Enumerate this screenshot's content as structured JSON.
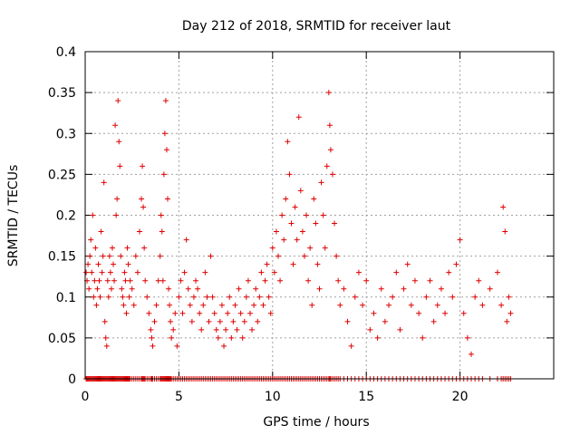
{
  "chart_data": {
    "type": "scatter",
    "title": "Day 212 of 2018, SRMTID for receiver laut",
    "xlabel": "GPS time / hours",
    "ylabel": "SRMTID / TECUs",
    "xlim": [
      0,
      25
    ],
    "ylim": [
      0,
      0.4
    ],
    "xticks": [
      0,
      5,
      10,
      15,
      20
    ],
    "xtick_labels": [
      "0",
      "5",
      "10",
      "15",
      "20"
    ],
    "yticks": [
      0,
      0.05,
      0.1,
      0.15,
      0.2,
      0.25,
      0.3,
      0.35,
      0.4
    ],
    "ytick_labels": [
      "0",
      "0.05",
      "0.1",
      "0.15",
      "0.2",
      "0.25",
      "0.3",
      "0.35",
      "0.4"
    ],
    "grid": true,
    "marker": "+",
    "marker_color": "#e00000",
    "series": [
      {
        "name": "SRMTID",
        "points": [
          [
            0.05,
            0.13
          ],
          [
            0.1,
            0.12
          ],
          [
            0.15,
            0.14
          ],
          [
            0.2,
            0.11
          ],
          [
            0.25,
            0.15
          ],
          [
            0.3,
            0.17
          ],
          [
            0.35,
            0.13
          ],
          [
            0.4,
            0.2
          ],
          [
            0.45,
            0.1
          ],
          [
            0.5,
            0.12
          ],
          [
            0.55,
            0.16
          ],
          [
            0.6,
            0.09
          ],
          [
            0.65,
            0.11
          ],
          [
            0.7,
            0.14
          ],
          [
            0.75,
            0.12
          ],
          [
            0.8,
            0.1
          ],
          [
            0.85,
            0.18
          ],
          [
            0.9,
            0.13
          ],
          [
            0.95,
            0.15
          ],
          [
            1.0,
            0.24
          ],
          [
            1.05,
            0.07
          ],
          [
            1.1,
            0.05
          ],
          [
            1.15,
            0.04
          ],
          [
            1.2,
            0.12
          ],
          [
            1.25,
            0.1
          ],
          [
            1.3,
            0.15
          ],
          [
            1.35,
            0.13
          ],
          [
            1.4,
            0.11
          ],
          [
            1.45,
            0.16
          ],
          [
            1.5,
            0.14
          ],
          [
            1.55,
            0.12
          ],
          [
            1.6,
            0.31
          ],
          [
            1.65,
            0.2
          ],
          [
            1.7,
            0.22
          ],
          [
            1.75,
            0.34
          ],
          [
            1.8,
            0.29
          ],
          [
            1.85,
            0.26
          ],
          [
            1.9,
            0.15
          ],
          [
            1.95,
            0.11
          ],
          [
            2.0,
            0.1
          ],
          [
            2.05,
            0.09
          ],
          [
            2.1,
            0.13
          ],
          [
            2.15,
            0.12
          ],
          [
            2.2,
            0.08
          ],
          [
            2.25,
            0.16
          ],
          [
            2.3,
            0.14
          ],
          [
            2.35,
            0.1
          ],
          [
            2.4,
            0.12
          ],
          [
            2.5,
            0.11
          ],
          [
            2.6,
            0.09
          ],
          [
            2.7,
            0.15
          ],
          [
            2.8,
            0.13
          ],
          [
            2.9,
            0.18
          ],
          [
            3.0,
            0.22
          ],
          [
            3.05,
            0.26
          ],
          [
            3.1,
            0.21
          ],
          [
            3.15,
            0.16
          ],
          [
            3.2,
            0.12
          ],
          [
            3.3,
            0.1
          ],
          [
            3.4,
            0.08
          ],
          [
            3.5,
            0.06
          ],
          [
            3.55,
            0.05
          ],
          [
            3.6,
            0.04
          ],
          [
            3.7,
            0.07
          ],
          [
            3.8,
            0.09
          ],
          [
            3.9,
            0.12
          ],
          [
            4.0,
            0.15
          ],
          [
            4.05,
            0.2
          ],
          [
            4.1,
            0.18
          ],
          [
            4.15,
            0.12
          ],
          [
            4.2,
            0.25
          ],
          [
            4.25,
            0.3
          ],
          [
            4.3,
            0.34
          ],
          [
            4.35,
            0.28
          ],
          [
            4.4,
            0.22
          ],
          [
            4.45,
            0.11
          ],
          [
            4.5,
            0.09
          ],
          [
            4.55,
            0.07
          ],
          [
            4.6,
            0.05
          ],
          [
            4.7,
            0.06
          ],
          [
            4.8,
            0.08
          ],
          [
            4.9,
            0.04
          ],
          [
            5.0,
            0.1
          ],
          [
            5.1,
            0.12
          ],
          [
            5.2,
            0.08
          ],
          [
            5.3,
            0.13
          ],
          [
            5.4,
            0.17
          ],
          [
            5.5,
            0.11
          ],
          [
            5.6,
            0.09
          ],
          [
            5.7,
            0.07
          ],
          [
            5.8,
            0.1
          ],
          [
            5.9,
            0.12
          ],
          [
            6.0,
            0.11
          ],
          [
            6.1,
            0.08
          ],
          [
            6.2,
            0.06
          ],
          [
            6.3,
            0.09
          ],
          [
            6.4,
            0.13
          ],
          [
            6.5,
            0.1
          ],
          [
            6.6,
            0.07
          ],
          [
            6.7,
            0.15
          ],
          [
            6.8,
            0.1
          ],
          [
            6.9,
            0.08
          ],
          [
            7.0,
            0.06
          ],
          [
            7.1,
            0.05
          ],
          [
            7.2,
            0.07
          ],
          [
            7.3,
            0.09
          ],
          [
            7.4,
            0.04
          ],
          [
            7.5,
            0.06
          ],
          [
            7.6,
            0.08
          ],
          [
            7.7,
            0.1
          ],
          [
            7.8,
            0.05
          ],
          [
            7.9,
            0.07
          ],
          [
            8.0,
            0.09
          ],
          [
            8.1,
            0.06
          ],
          [
            8.2,
            0.11
          ],
          [
            8.3,
            0.08
          ],
          [
            8.4,
            0.05
          ],
          [
            8.5,
            0.07
          ],
          [
            8.6,
            0.1
          ],
          [
            8.7,
            0.12
          ],
          [
            8.8,
            0.08
          ],
          [
            8.9,
            0.06
          ],
          [
            9.0,
            0.09
          ],
          [
            9.1,
            0.11
          ],
          [
            9.2,
            0.07
          ],
          [
            9.3,
            0.1
          ],
          [
            9.4,
            0.13
          ],
          [
            9.5,
            0.09
          ],
          [
            9.6,
            0.12
          ],
          [
            9.7,
            0.14
          ],
          [
            9.8,
            0.1
          ],
          [
            9.9,
            0.08
          ],
          [
            10.0,
            0.16
          ],
          [
            10.1,
            0.13
          ],
          [
            10.2,
            0.18
          ],
          [
            10.3,
            0.15
          ],
          [
            10.4,
            0.12
          ],
          [
            10.5,
            0.2
          ],
          [
            10.6,
            0.17
          ],
          [
            10.7,
            0.22
          ],
          [
            10.8,
            0.29
          ],
          [
            10.9,
            0.25
          ],
          [
            11.0,
            0.19
          ],
          [
            11.1,
            0.14
          ],
          [
            11.2,
            0.21
          ],
          [
            11.3,
            0.17
          ],
          [
            11.4,
            0.32
          ],
          [
            11.5,
            0.23
          ],
          [
            11.6,
            0.18
          ],
          [
            11.7,
            0.15
          ],
          [
            11.8,
            0.2
          ],
          [
            11.9,
            0.12
          ],
          [
            12.0,
            0.16
          ],
          [
            12.1,
            0.09
          ],
          [
            12.2,
            0.22
          ],
          [
            12.3,
            0.19
          ],
          [
            12.4,
            0.14
          ],
          [
            12.5,
            0.11
          ],
          [
            12.6,
            0.24
          ],
          [
            12.7,
            0.2
          ],
          [
            12.8,
            0.16
          ],
          [
            12.9,
            0.26
          ],
          [
            13.0,
            0.35
          ],
          [
            13.05,
            0.31
          ],
          [
            13.1,
            0.28
          ],
          [
            13.2,
            0.25
          ],
          [
            13.3,
            0.19
          ],
          [
            13.4,
            0.15
          ],
          [
            13.5,
            0.12
          ],
          [
            13.6,
            0.09
          ],
          [
            13.8,
            0.11
          ],
          [
            14.0,
            0.07
          ],
          [
            14.2,
            0.04
          ],
          [
            14.4,
            0.1
          ],
          [
            14.6,
            0.13
          ],
          [
            14.8,
            0.09
          ],
          [
            15.0,
            0.12
          ],
          [
            15.2,
            0.06
          ],
          [
            15.4,
            0.08
          ],
          [
            15.6,
            0.05
          ],
          [
            15.8,
            0.11
          ],
          [
            16.0,
            0.07
          ],
          [
            16.2,
            0.09
          ],
          [
            16.4,
            0.1
          ],
          [
            16.6,
            0.13
          ],
          [
            16.8,
            0.06
          ],
          [
            17.0,
            0.11
          ],
          [
            17.2,
            0.14
          ],
          [
            17.4,
            0.09
          ],
          [
            17.6,
            0.12
          ],
          [
            17.8,
            0.08
          ],
          [
            18.0,
            0.05
          ],
          [
            18.2,
            0.1
          ],
          [
            18.4,
            0.12
          ],
          [
            18.6,
            0.07
          ],
          [
            18.8,
            0.09
          ],
          [
            19.0,
            0.11
          ],
          [
            19.2,
            0.08
          ],
          [
            19.4,
            0.13
          ],
          [
            19.6,
            0.1
          ],
          [
            19.8,
            0.14
          ],
          [
            20.0,
            0.17
          ],
          [
            20.2,
            0.08
          ],
          [
            20.4,
            0.05
          ],
          [
            20.6,
            0.03
          ],
          [
            20.8,
            0.1
          ],
          [
            21.0,
            0.12
          ],
          [
            21.2,
            0.09
          ],
          [
            21.6,
            0.11
          ],
          [
            22.0,
            0.13
          ],
          [
            22.2,
            0.09
          ],
          [
            22.3,
            0.21
          ],
          [
            22.4,
            0.18
          ],
          [
            22.5,
            0.07
          ],
          [
            22.6,
            0.1
          ],
          [
            22.7,
            0.08
          ]
        ]
      }
    ]
  }
}
